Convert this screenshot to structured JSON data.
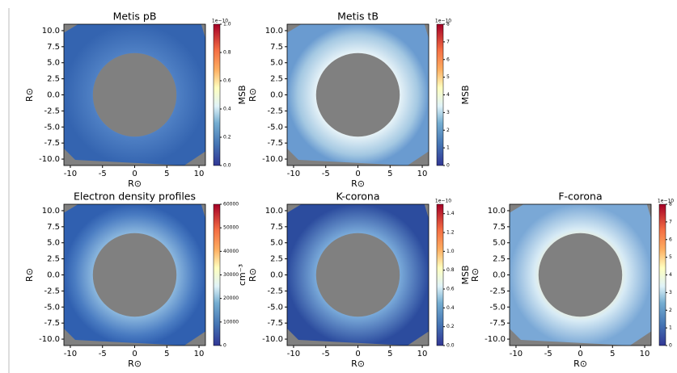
{
  "chart_data": [
    {
      "type": "image",
      "title": "Metis pB",
      "xlabel": "R⊙",
      "ylabel": "R⊙",
      "xlim": [
        -11,
        11
      ],
      "ylim": [
        -11,
        11
      ],
      "xticks": [
        -10,
        -5,
        0,
        5,
        10
      ],
      "yticks": [
        {
          "value": 10,
          "label": "10.0"
        },
        {
          "value": 7.5,
          "label": "7.5"
        },
        {
          "value": 5,
          "label": "5.0"
        },
        {
          "value": 2.5,
          "label": "2.5"
        },
        {
          "value": 0,
          "label": "0.0"
        },
        {
          "value": -2.5,
          "label": "-2.5"
        },
        {
          "value": -5,
          "label": "-5.0"
        },
        {
          "value": -7.5,
          "label": "-7.5"
        },
        {
          "value": -10,
          "label": "-10.0"
        }
      ],
      "colorbar": {
        "label": "MSB",
        "offset_label": "1e−10",
        "lim": [
          0,
          1
        ],
        "ticks": [
          {
            "value": 0,
            "label": "0.0"
          },
          0.2,
          0.4,
          0.6,
          0.8,
          {
            "value": 1,
            "label": "1.0"
          }
        ]
      }
    },
    {
      "type": "image",
      "title": "Metis tB",
      "xlabel": "R⊙",
      "ylabel": "R⊙",
      "xlim": [
        -11,
        11
      ],
      "ylim": [
        -11,
        11
      ],
      "xticks": [
        -10,
        -5,
        0,
        5,
        10
      ],
      "yticks": [
        {
          "value": 10,
          "label": "10.0"
        },
        {
          "value": 7.5,
          "label": "7.5"
        },
        {
          "value": 5,
          "label": "5.0"
        },
        {
          "value": 2.5,
          "label": "2.5"
        },
        {
          "value": 0,
          "label": "0.0"
        },
        {
          "value": -2.5,
          "label": "-2.5"
        },
        {
          "value": -5,
          "label": "-5.0"
        },
        {
          "value": -7.5,
          "label": "-7.5"
        },
        {
          "value": -10,
          "label": "-10.0"
        }
      ],
      "colorbar": {
        "label": "MSB",
        "offset_label": "1e−10",
        "lim": [
          0,
          8
        ],
        "ticks": [
          0,
          1,
          2,
          3,
          4,
          5,
          6,
          7,
          8
        ]
      }
    },
    {
      "type": "image",
      "title": "Electron density profiles",
      "xlabel": "R⊙",
      "ylabel": "R⊙",
      "xlim": [
        -11,
        11
      ],
      "ylim": [
        -11,
        11
      ],
      "xticks": [
        -10,
        -5,
        0,
        5,
        10
      ],
      "yticks": [
        {
          "value": 10,
          "label": "10.0"
        },
        {
          "value": 7.5,
          "label": "7.5"
        },
        {
          "value": 5,
          "label": "5.0"
        },
        {
          "value": 2.5,
          "label": "2.5"
        },
        {
          "value": 0,
          "label": "0.0"
        },
        {
          "value": -2.5,
          "label": "-2.5"
        },
        {
          "value": -5,
          "label": "-5.0"
        },
        {
          "value": -7.5,
          "label": "-7.5"
        },
        {
          "value": -10,
          "label": "-10.0"
        }
      ],
      "colorbar": {
        "label": "cm⁻³",
        "lim": [
          0,
          60000
        ],
        "ticks": [
          0,
          10000,
          20000,
          30000,
          40000,
          50000,
          60000
        ]
      }
    },
    {
      "type": "image",
      "title": "K-corona",
      "xlabel": "R⊙",
      "ylabel": "R⊙",
      "xlim": [
        -11,
        11
      ],
      "ylim": [
        -11,
        11
      ],
      "xticks": [
        -10,
        -5,
        0,
        5,
        10
      ],
      "yticks": [
        {
          "value": 10,
          "label": "10.0"
        },
        {
          "value": 7.5,
          "label": "7.5"
        },
        {
          "value": 5,
          "label": "5.0"
        },
        {
          "value": 2.5,
          "label": "2.5"
        },
        {
          "value": 0,
          "label": "0.0"
        },
        {
          "value": -2.5,
          "label": "-2.5"
        },
        {
          "value": -5,
          "label": "-5.0"
        },
        {
          "value": -7.5,
          "label": "-7.5"
        },
        {
          "value": -10,
          "label": "-10.0"
        }
      ],
      "colorbar": {
        "label": "MSB",
        "offset_label": "1e−10",
        "lim": [
          0,
          1.5
        ],
        "ticks": [
          {
            "value": 0,
            "label": "0.0"
          },
          0.2,
          0.4,
          0.6,
          0.8,
          {
            "value": 1,
            "label": "1.0"
          },
          1.2,
          1.4
        ]
      }
    },
    {
      "type": "image",
      "title": "F-corona",
      "xlabel": "R⊙",
      "ylabel": "R⊙",
      "xlim": [
        -11,
        11
      ],
      "ylim": [
        -11,
        11
      ],
      "xticks": [
        -10,
        -5,
        0,
        5,
        10
      ],
      "yticks": [
        {
          "value": 10,
          "label": "10.0"
        },
        {
          "value": 7.5,
          "label": "7.5"
        },
        {
          "value": 5,
          "label": "5.0"
        },
        {
          "value": 2.5,
          "label": "2.5"
        },
        {
          "value": 0,
          "label": "0.0"
        },
        {
          "value": -2.5,
          "label": "-2.5"
        },
        {
          "value": -5,
          "label": "-5.0"
        },
        {
          "value": -7.5,
          "label": "-7.5"
        },
        {
          "value": -10,
          "label": "-10.0"
        }
      ],
      "colorbar": {
        "label": "MSB",
        "offset_label": "1e−10",
        "lim": [
          0,
          8
        ],
        "ticks": [
          0,
          1,
          2,
          3,
          4,
          5,
          6,
          7,
          8
        ]
      }
    }
  ]
}
